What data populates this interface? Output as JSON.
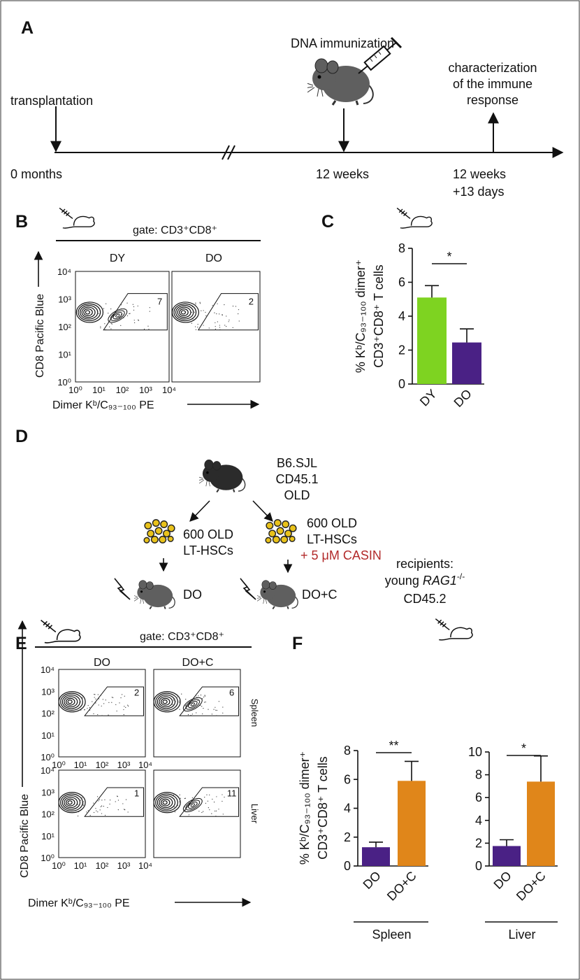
{
  "panel_a": {
    "label": "A",
    "transplantation": "transplantation",
    "immunization": "DNA immunization",
    "characterization": [
      "characterization",
      "of the immune",
      "response"
    ],
    "time_start": "0 months",
    "time_mid": "12 weeks",
    "time_end": [
      "12 weeks",
      "+13 days"
    ]
  },
  "panel_b": {
    "label": "B",
    "gate": "gate: CD3⁺CD8⁺",
    "columns": [
      "DY",
      "DO"
    ],
    "gate_percent": [
      7,
      2
    ],
    "ticks": [
      "10⁰",
      "10¹",
      "10²",
      "10³",
      "10⁴"
    ],
    "x_label": "Dimer Kᵇ/C₉₃₋₁₀₀ PE",
    "y_label": "CD8 Pacific Blue"
  },
  "panel_c": {
    "label": "C"
  },
  "panel_d": {
    "label": "D",
    "donor": [
      "B6.SJL",
      "CD45.1",
      "OLD"
    ],
    "left_cells": [
      "600 OLD",
      "LT-HSCs"
    ],
    "right_cells": [
      "600 OLD",
      "LT-HSCs"
    ],
    "treatment": "+ 5 μM CASIN",
    "groups": [
      "DO",
      "DO+C"
    ],
    "recipients": {
      "title": "recipients:",
      "young": "young",
      "gene": "RAG1",
      "genotype": "-/-",
      "marker": "CD45.2"
    }
  },
  "panel_e": {
    "label": "E",
    "gate": "gate: CD3⁺CD8⁺",
    "columns": [
      "DO",
      "DO+C"
    ],
    "rows": [
      "Spleen",
      "Liver"
    ],
    "gate_percent": [
      [
        2,
        6
      ],
      [
        1,
        11
      ]
    ],
    "ticks": [
      "10⁰",
      "10¹",
      "10²",
      "10³",
      "10⁴"
    ],
    "x_label": "Dimer Kᵇ/C₉₃₋₁₀₀ PE",
    "y_label": "CD8 Pacific Blue"
  },
  "panel_f": {
    "label": "F"
  },
  "chart_data": [
    {
      "type": "bar",
      "ylabel": [
        "% Kᵇ/C₉₃₋₁₀₀ dimer⁺",
        "CD3⁺CD8⁺ T cells"
      ],
      "categories": [
        "DY",
        "DO"
      ],
      "values": [
        5.1,
        2.45
      ],
      "errors": [
        0.7,
        0.8
      ],
      "colors": [
        "#7ed321",
        "#4a2185"
      ],
      "ylim": [
        0,
        8
      ],
      "yticks": [
        0,
        2,
        4,
        6,
        8
      ],
      "significance": "*"
    },
    {
      "type": "bar",
      "ylabel": [
        "% Kᵇ/C₉₃₋₁₀₀ dimer⁺",
        "CD3⁺CD8⁺ T cells"
      ],
      "group": "Spleen",
      "categories": [
        "DO",
        "DO+C"
      ],
      "values": [
        1.3,
        5.9
      ],
      "errors": [
        0.35,
        1.35
      ],
      "colors": [
        "#4a2185",
        "#e0861a"
      ],
      "ylim": [
        0,
        8
      ],
      "yticks": [
        0,
        2,
        4,
        6,
        8
      ],
      "significance": "**"
    },
    {
      "type": "bar",
      "group": "Liver",
      "categories": [
        "DO",
        "DO+C"
      ],
      "values": [
        1.75,
        7.4
      ],
      "errors": [
        0.55,
        2.25
      ],
      "colors": [
        "#4a2185",
        "#e0861a"
      ],
      "ylim": [
        0,
        10
      ],
      "yticks": [
        0,
        2,
        4,
        6,
        8,
        10
      ],
      "significance": "*"
    }
  ]
}
